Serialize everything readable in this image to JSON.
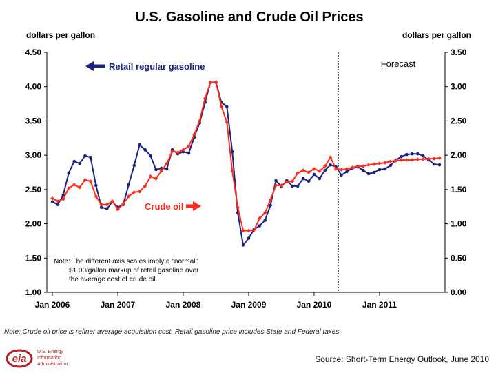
{
  "title": "U.S. Gasoline and Crude Oil Prices",
  "left_unit": "dollars per gallon",
  "right_unit": "dollars per gallon",
  "forecast_label": "Forecast",
  "note_lines": [
    "Note: The different axis scales imply a \"normal\"",
    "$1.00/gallon markup of retail gasoline over",
    "the average cost of crude oil."
  ],
  "footnote": "Note: Crude oil price is refiner average acquisition cost.  Retail gasoline price includes State and Federal taxes.",
  "source": "Source: Short-Term Energy Outlook, June 2010",
  "logo": {
    "mark": "eia",
    "lines": [
      "U.S. Energy",
      "Information",
      "Administration"
    ]
  },
  "colors": {
    "gasoline": "#1a237e",
    "crude": "#ff2a1a",
    "axis": "#000000"
  },
  "chart_data": {
    "type": "line",
    "title": "U.S. Gasoline and Crude Oil Prices",
    "x_tick_labels": [
      "Jan 2006",
      "Jan 2007",
      "Jan 2008",
      "Jan 2009",
      "Jan 2010",
      "Jan 2011"
    ],
    "x_start": "Jan 2006",
    "x_end": "Dec 2011",
    "forecast_start": "Jun 2010",
    "y_left": {
      "label": "dollars per gallon",
      "min": 1.0,
      "max": 4.5,
      "ticks": [
        "1.00",
        "1.50",
        "2.00",
        "2.50",
        "3.00",
        "3.50",
        "4.00",
        "4.50"
      ]
    },
    "y_right": {
      "label": "dollars per gallon",
      "min": 0.0,
      "max": 3.5,
      "ticks": [
        "0.00",
        "0.50",
        "1.00",
        "1.50",
        "2.00",
        "2.50",
        "3.00",
        "3.50"
      ]
    },
    "grid": false,
    "series": [
      {
        "name": "Retail regular gasoline",
        "axis": "left",
        "color": "#1a237e",
        "marker": "circle",
        "values": [
          2.32,
          2.28,
          2.42,
          2.74,
          2.91,
          2.88,
          2.99,
          2.97,
          2.56,
          2.24,
          2.22,
          2.32,
          2.24,
          2.28,
          2.57,
          2.85,
          3.15,
          3.08,
          2.99,
          2.79,
          2.81,
          2.8,
          3.08,
          3.02,
          3.05,
          3.03,
          3.26,
          3.47,
          3.77,
          4.06,
          4.06,
          3.77,
          3.71,
          3.05,
          2.16,
          1.69,
          1.79,
          1.92,
          1.97,
          2.05,
          2.27,
          2.63,
          2.54,
          2.63,
          2.55,
          2.55,
          2.66,
          2.62,
          2.72,
          2.66,
          2.78,
          2.86,
          2.83,
          2.71,
          2.76,
          2.81,
          2.83,
          2.78,
          2.73,
          2.75,
          2.79,
          2.8,
          2.85,
          2.93,
          2.98,
          3.01,
          3.02,
          3.02,
          2.99,
          2.93,
          2.87,
          2.86
        ]
      },
      {
        "name": "Crude oil",
        "axis": "right",
        "color": "#ff2a1a",
        "marker": "diamond",
        "values": [
          1.37,
          1.33,
          1.36,
          1.52,
          1.57,
          1.53,
          1.64,
          1.62,
          1.4,
          1.28,
          1.28,
          1.33,
          1.21,
          1.29,
          1.4,
          1.46,
          1.47,
          1.55,
          1.69,
          1.66,
          1.77,
          1.88,
          2.06,
          2.04,
          2.08,
          2.13,
          2.3,
          2.5,
          2.83,
          3.06,
          3.07,
          2.71,
          2.48,
          1.77,
          1.24,
          0.9,
          0.9,
          0.91,
          1.08,
          1.16,
          1.35,
          1.56,
          1.56,
          1.61,
          1.62,
          1.74,
          1.78,
          1.75,
          1.8,
          1.77,
          1.84,
          1.97,
          1.8,
          1.79,
          1.8,
          1.82,
          1.84,
          1.84,
          1.86,
          1.87,
          1.88,
          1.89,
          1.91,
          1.92,
          1.93,
          1.93,
          1.93,
          1.94,
          1.94,
          1.95,
          1.95,
          1.96
        ]
      }
    ],
    "annotations": [
      {
        "text": "Retail regular gasoline",
        "arrow": "left",
        "color": "#1a237e"
      },
      {
        "text": "Crude oil",
        "arrow": "right",
        "color": "#ff2a1a"
      },
      {
        "text": "Forecast"
      }
    ]
  }
}
